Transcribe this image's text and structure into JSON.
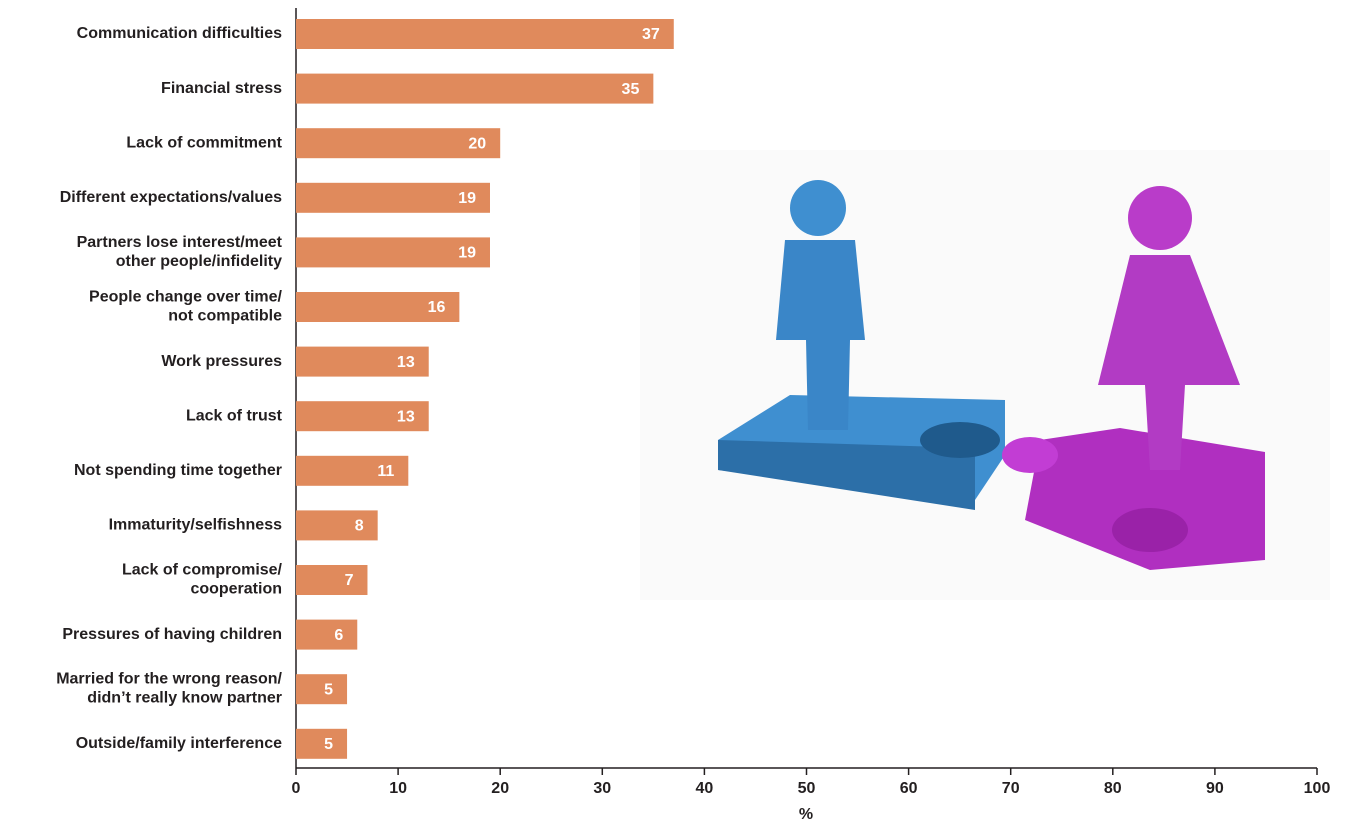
{
  "chart_data": {
    "type": "bar",
    "orientation": "horizontal",
    "categories": [
      "Communication difficulties",
      "Financial stress",
      "Lack of commitment",
      "Different expectations/values",
      "Partners lose interest/meet\nother people/infidelity",
      "People change over time/\nnot compatible",
      "Work pressures",
      "Lack of trust",
      "Not spending time together",
      "Immaturity/selfishness",
      "Lack of compromise/\ncooperation",
      "Pressures of having children",
      "Married for the wrong reason/\ndidn’t really know partner",
      "Outside/family interference"
    ],
    "values": [
      37,
      35,
      20,
      19,
      19,
      16,
      13,
      13,
      11,
      8,
      7,
      6,
      5,
      5
    ],
    "color": "#e08a5c",
    "xlabel": "%",
    "xlim": [
      0,
      100
    ],
    "xticks": [
      0,
      10,
      20,
      30,
      40,
      50,
      60,
      70,
      80,
      90,
      100
    ]
  }
}
